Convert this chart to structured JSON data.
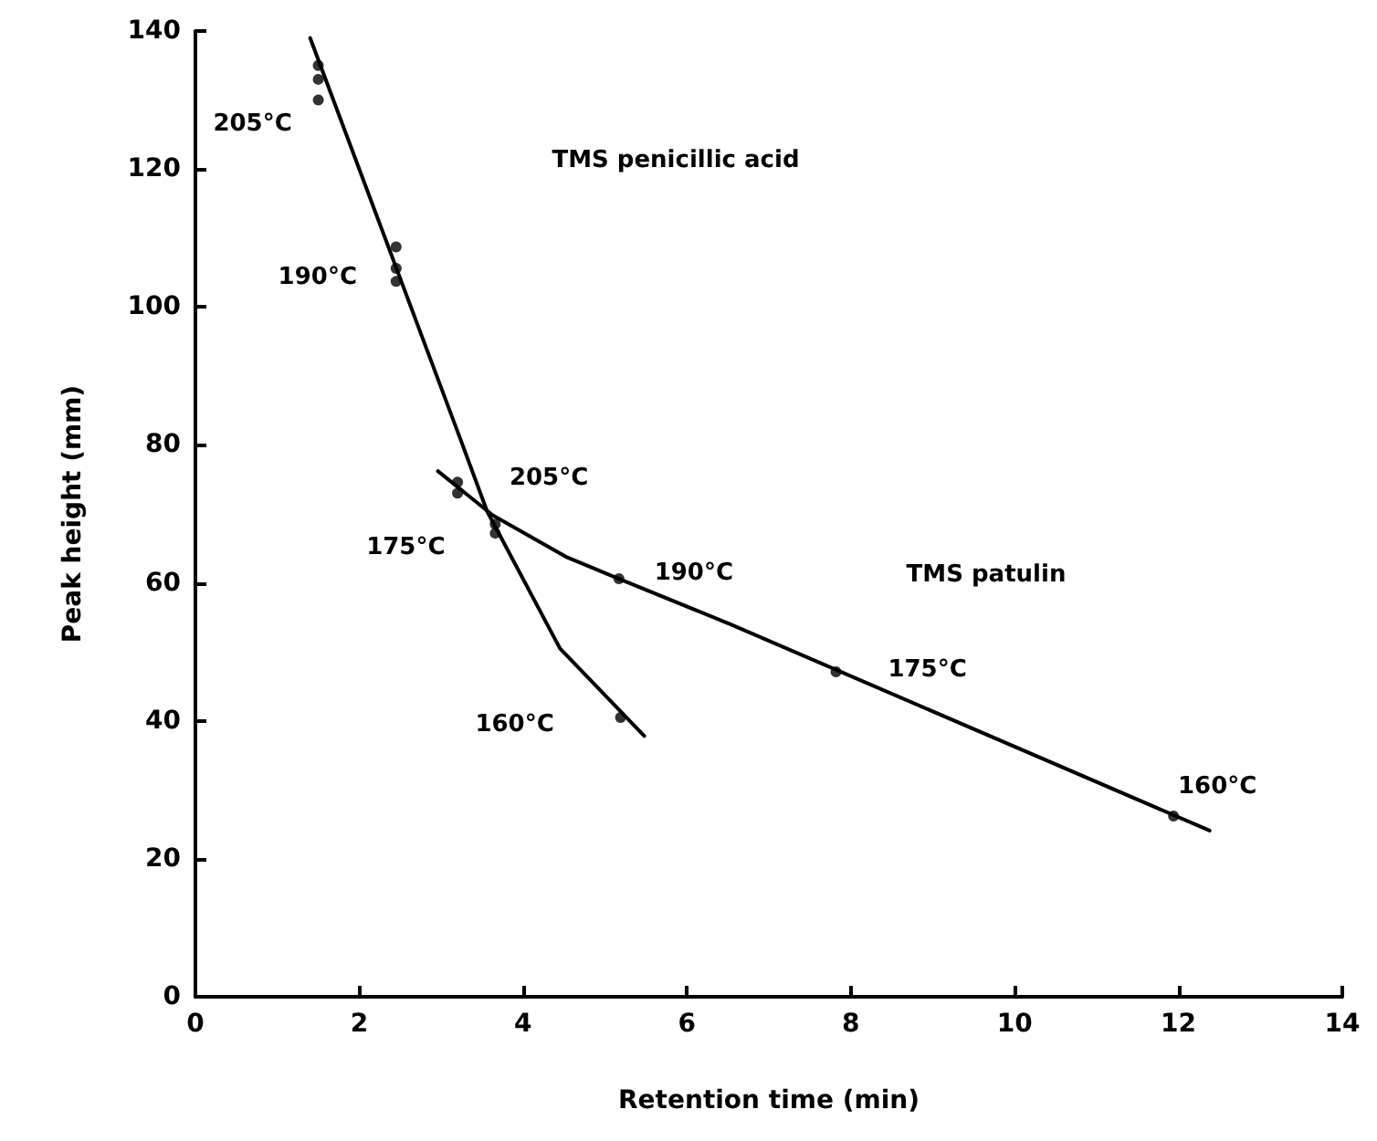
{
  "chart_data": {
    "type": "scatter",
    "xlabel": "Retention time (min)",
    "ylabel": "Peak height (mm)",
    "xlim": [
      0,
      14
    ],
    "xticks": [
      0,
      2,
      4,
      6,
      8,
      10,
      12,
      14
    ],
    "ylim": [
      0,
      140
    ],
    "yticks": [
      0,
      20,
      40,
      60,
      80,
      100,
      120,
      140
    ],
    "grid": false,
    "marker": "circle",
    "series": [
      {
        "color": "#000000",
        "x": [
          1.5,
          1.5,
          1.5,
          2.45,
          2.45,
          2.45,
          3.66,
          3.66,
          5.19
        ],
        "values": [
          135,
          133,
          130,
          108.7,
          105.6,
          103.7,
          68.5,
          67.2,
          40.5
        ]
      },
      {
        "color": "#000000",
        "x": [
          3.2,
          3.2,
          5.17,
          7.82,
          11.94
        ],
        "values": [
          74.6,
          73,
          60.6,
          47.1,
          26.2
        ]
      },
      {
        "type": "line",
        "color": "#000000",
        "marker": "none",
        "line_style": "solid",
        "x": [
          1.4,
          3.23,
          3.56,
          4.45,
          5.48
        ],
        "values": [
          139,
          81,
          70.4,
          50.5,
          37.8
        ]
      },
      {
        "type": "line",
        "color": "#000000",
        "marker": "none",
        "line_style": "solid",
        "x": [
          2.96,
          3.63,
          4.52,
          5.17,
          6.53,
          12.38
        ],
        "values": [
          76.2,
          69.8,
          63.8,
          60.6,
          54,
          24.1
        ]
      }
    ],
    "annotations": [
      {
        "text": "205°C",
        "x": 1.5,
        "y": 130
      },
      "TMS penicillic acid",
      {
        "text": "190°C",
        "x": 2.45,
        "y": 105.6
      },
      {
        "text": "205°C",
        "x": 3.2,
        "y": 73.8
      },
      {
        "text": "175°C",
        "x": 3.66,
        "y": 67.8
      },
      {
        "text": "190°C",
        "x": 5.17,
        "y": 60.6
      },
      "TMS patulin",
      {
        "text": "175°C",
        "x": 7.82,
        "y": 47.1
      },
      {
        "text": "160°C",
        "x": 5.19,
        "y": 40.5
      },
      {
        "text": "160°C",
        "x": 11.94,
        "y": 26.2
      }
    ]
  }
}
